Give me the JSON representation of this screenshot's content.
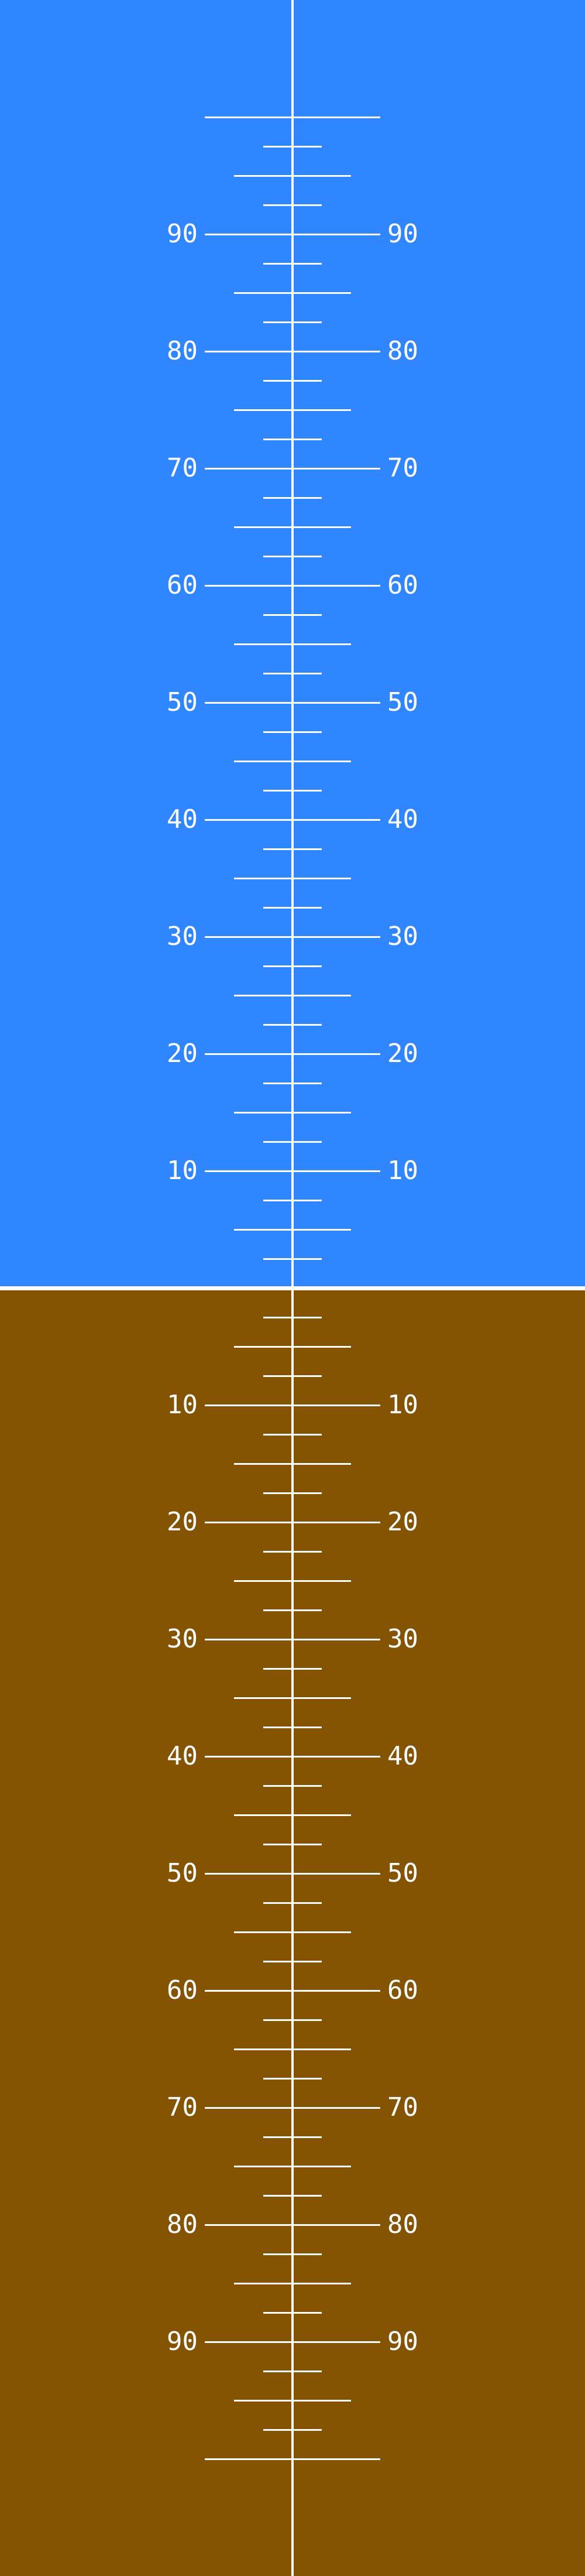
{
  "colors": {
    "sky": "#2f86ff",
    "ground": "#855402",
    "lines": "#ffffff"
  },
  "pitch_ladder": {
    "step_degrees": 2.5,
    "range_degrees": [
      -100,
      100
    ],
    "labels_above": [
      "90",
      "80",
      "70",
      "60",
      "50",
      "40",
      "30",
      "20",
      "10"
    ],
    "labels_below": [
      "10",
      "20",
      "30",
      "40",
      "50",
      "60",
      "70",
      "80",
      "90"
    ]
  }
}
